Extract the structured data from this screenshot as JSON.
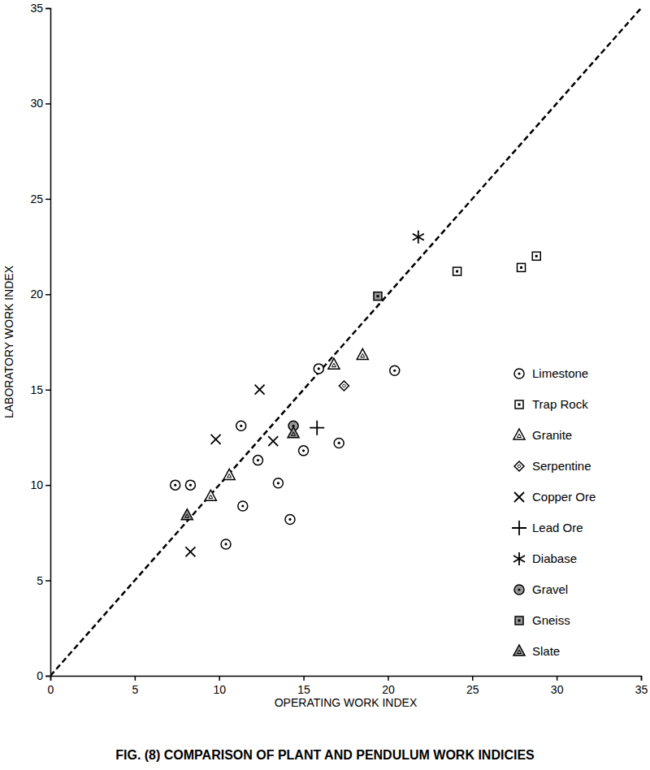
{
  "chart_data": {
    "type": "scatter",
    "title": "FIG. (8) COMPARISON OF PLANT AND PENDULUM WORK INDICIES",
    "x_label": "OPERATING WORK INDEX",
    "y_label": "LABORATORY WORK INDEX",
    "xlim": [
      0,
      35
    ],
    "ylim": [
      0,
      35
    ],
    "xticks": [
      0,
      5,
      10,
      15,
      20,
      25,
      30,
      35
    ],
    "yticks": [
      0,
      5,
      10,
      15,
      20,
      25,
      30,
      35
    ],
    "grid": false,
    "legend": "lower right",
    "reference_line": {
      "x": [
        0,
        35
      ],
      "y": [
        0,
        35
      ],
      "line_style": "dashed",
      "color": "#000000"
    },
    "series": [
      {
        "name": "Limestone",
        "marker": "circle-dot",
        "color": "#000000",
        "x": [
          7.4,
          8.3,
          11.3,
          12.3,
          11.4,
          13.5,
          14.2,
          15.0,
          15.9,
          17.1,
          20.4,
          10.4
        ],
        "values": [
          10.0,
          10.0,
          13.1,
          11.3,
          8.9,
          10.1,
          8.2,
          11.8,
          16.1,
          12.2,
          16.0,
          6.9
        ]
      },
      {
        "name": "Trap Rock",
        "marker": "square-dot",
        "color": "#000000",
        "x": [
          24.1,
          27.9,
          28.8
        ],
        "values": [
          21.2,
          21.4,
          22.0
        ]
      },
      {
        "name": "Granite",
        "marker": "triangle",
        "color": "#000000",
        "x": [
          16.8,
          18.5,
          10.6,
          9.5
        ],
        "values": [
          16.3,
          16.8,
          10.5,
          9.4
        ]
      },
      {
        "name": "Serpentine",
        "marker": "diamond",
        "color": "#000000",
        "x": [
          17.4
        ],
        "values": [
          15.2
        ]
      },
      {
        "name": "Copper Ore",
        "marker": "x",
        "color": "#000000",
        "x": [
          12.4,
          9.8,
          13.2,
          8.3
        ],
        "values": [
          15.0,
          12.4,
          12.3,
          6.5
        ]
      },
      {
        "name": "Lead Ore",
        "marker": "plus",
        "color": "#000000",
        "x": [
          15.8
        ],
        "values": [
          13.0
        ]
      },
      {
        "name": "Diabase",
        "marker": "asterisk",
        "color": "#000000",
        "x": [
          21.8
        ],
        "values": [
          23.0
        ]
      },
      {
        "name": "Gravel",
        "marker": "circle-shaded",
        "color": "#000000",
        "x": [
          14.4
        ],
        "values": [
          13.1
        ]
      },
      {
        "name": "Gneiss",
        "marker": "square-shaded",
        "color": "#000000",
        "x": [
          19.4
        ],
        "values": [
          19.9
        ]
      },
      {
        "name": "Slate",
        "marker": "triangle-shaded",
        "color": "#000000",
        "x": [
          14.4,
          8.1
        ],
        "values": [
          12.7,
          8.4
        ]
      }
    ]
  }
}
